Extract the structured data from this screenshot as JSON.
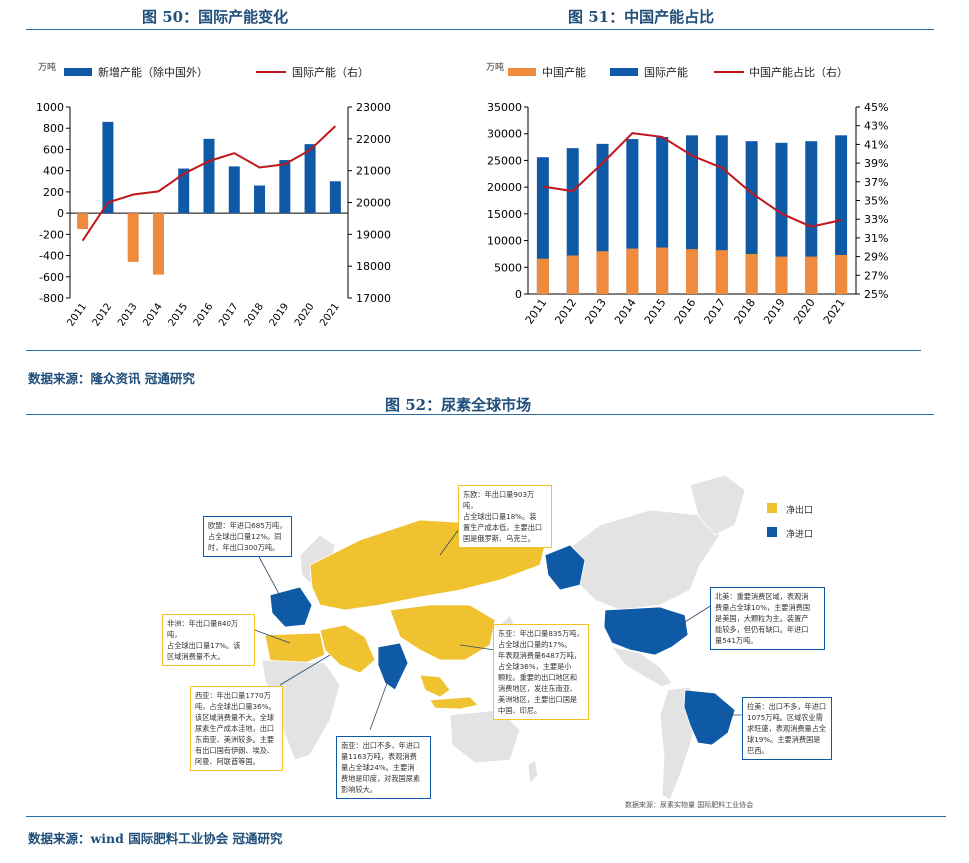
{
  "titles": {
    "fig50": "图 50：国际产能变化",
    "fig51": "图 51：中国产能占比",
    "fig52": "图 52：尿素全球市场"
  },
  "sources": {
    "top": "数据来源：隆众资讯 冠通研究",
    "bottom": "数据来源：wind 国际肥料工业协会 冠通研究"
  },
  "chart_data": [
    {
      "type": "bar",
      "unit_label": "万吨",
      "categories": [
        "2011",
        "2012",
        "2013",
        "2014",
        "2015",
        "2016",
        "2017",
        "2018",
        "2019",
        "2020",
        "2021"
      ],
      "series": [
        {
          "name": "新增产能（除中国外）",
          "kind": "bar",
          "axis": "left",
          "values": [
            -150,
            860,
            -460,
            -580,
            420,
            700,
            440,
            260,
            500,
            650,
            300
          ],
          "color_pos": "#0f5aa6",
          "color_neg": "#f08a3c"
        },
        {
          "name": "国际产能（右）",
          "kind": "line",
          "axis": "right",
          "values": [
            18800,
            20000,
            20250,
            20350,
            20900,
            21300,
            21550,
            21100,
            21200,
            21650,
            22400
          ],
          "color": "#c0161c"
        }
      ],
      "yleft": {
        "min": -800,
        "max": 1000,
        "ticks": [
          -800,
          -600,
          -400,
          -200,
          0,
          200,
          400,
          600,
          800,
          1000
        ]
      },
      "yright": {
        "min": 17000,
        "max": 23000,
        "ticks": [
          17000,
          18000,
          19000,
          20000,
          21000,
          22000,
          23000
        ]
      }
    },
    {
      "type": "bar",
      "unit_label": "万吨",
      "categories": [
        "2011",
        "2012",
        "2013",
        "2014",
        "2015",
        "2016",
        "2017",
        "2018",
        "2019",
        "2020",
        "2021"
      ],
      "series": [
        {
          "name": "中国产能",
          "kind": "bar",
          "axis": "left",
          "values": [
            6600,
            7200,
            8000,
            8500,
            8700,
            8400,
            8200,
            7500,
            7000,
            7000,
            7300
          ],
          "color": "#f08a3c"
        },
        {
          "name": "国际产能",
          "kind": "bar",
          "axis": "left",
          "values": [
            25600,
            27300,
            28100,
            29000,
            29400,
            29700,
            29700,
            28600,
            28300,
            28600,
            29700
          ],
          "color": "#0f5aa6"
        },
        {
          "name": "中国产能占比（右）",
          "kind": "line",
          "axis": "right",
          "values": [
            36.5,
            36.0,
            39.0,
            42.2,
            41.8,
            39.8,
            38.5,
            35.8,
            33.6,
            32.2,
            32.9
          ],
          "color": "#c0161c"
        }
      ],
      "yleft": {
        "min": 0,
        "max": 35000,
        "ticks": [
          0,
          5000,
          10000,
          15000,
          20000,
          25000,
          30000,
          35000
        ]
      },
      "yright": {
        "min": 25,
        "max": 45,
        "ticks": [
          "25%",
          "27%",
          "29%",
          "31%",
          "33%",
          "35%",
          "37%",
          "39%",
          "41%",
          "43%",
          "45%"
        ]
      }
    }
  ],
  "map": {
    "legend": [
      {
        "label": "净出口",
        "color": "#f0c230"
      },
      {
        "label": "净进口",
        "color": "#0f5aa6"
      }
    ],
    "colors": {
      "export": "#f0c230",
      "import": "#0f5aa6",
      "other": "#e3e3e3",
      "ocean": "#ffffff"
    },
    "callouts": {
      "east_europe": "东欧：年出口量903万吨，\n占全球出口量18%。装\n置生产成本低，主要出口\n国是俄罗斯、乌克兰。",
      "europe": "欧盟：年进口685万吨，\n占全球出口量12%。同\n时，年出口300万吨。",
      "africa": "非洲：年出口量840万吨，\n占全球出口量17%。该\n区域消费量不大。",
      "west_asia": "西亚：年出口量1770万\n吨，占全球出口量36%。\n该区域消费量不大。全球\n尿素生产成本洼地，出口\n东南亚、美洲较多。主要\n有出口国有伊朗、埃及、\n阿曼、阿联酋等国。",
      "south_asia": "南亚：出口不多，年进口\n量1163万吨，表观消费\n量占全球24%。主要消\n费地是印度，对我国尿素\n影响较大。",
      "east_asia": "东亚：年出口量835万吨，\n占全球出口量的17%。\n年表观消费量6487万吨，\n占全球36%，主要是小\n颗粒。重要的出口地区和\n消费地区，发往东南亚、\n美洲地区，主要出口国是\n中国、印尼。",
      "north_america": "北美：重要消费区域，表观消\n费量占全球10%，主要消费国\n是美国，大颗粒为主。装置产\n能较多，但仍有缺口。年进口\n量541万吨。",
      "latin_america": "拉美：出口不多，年进口\n1075万吨。区域农业需\n求旺盛，表观消费量占全\n球19%。主要消费国是\n巴西。"
    },
    "source": "数据来源：尿素实物量 国际肥料工业协会"
  }
}
